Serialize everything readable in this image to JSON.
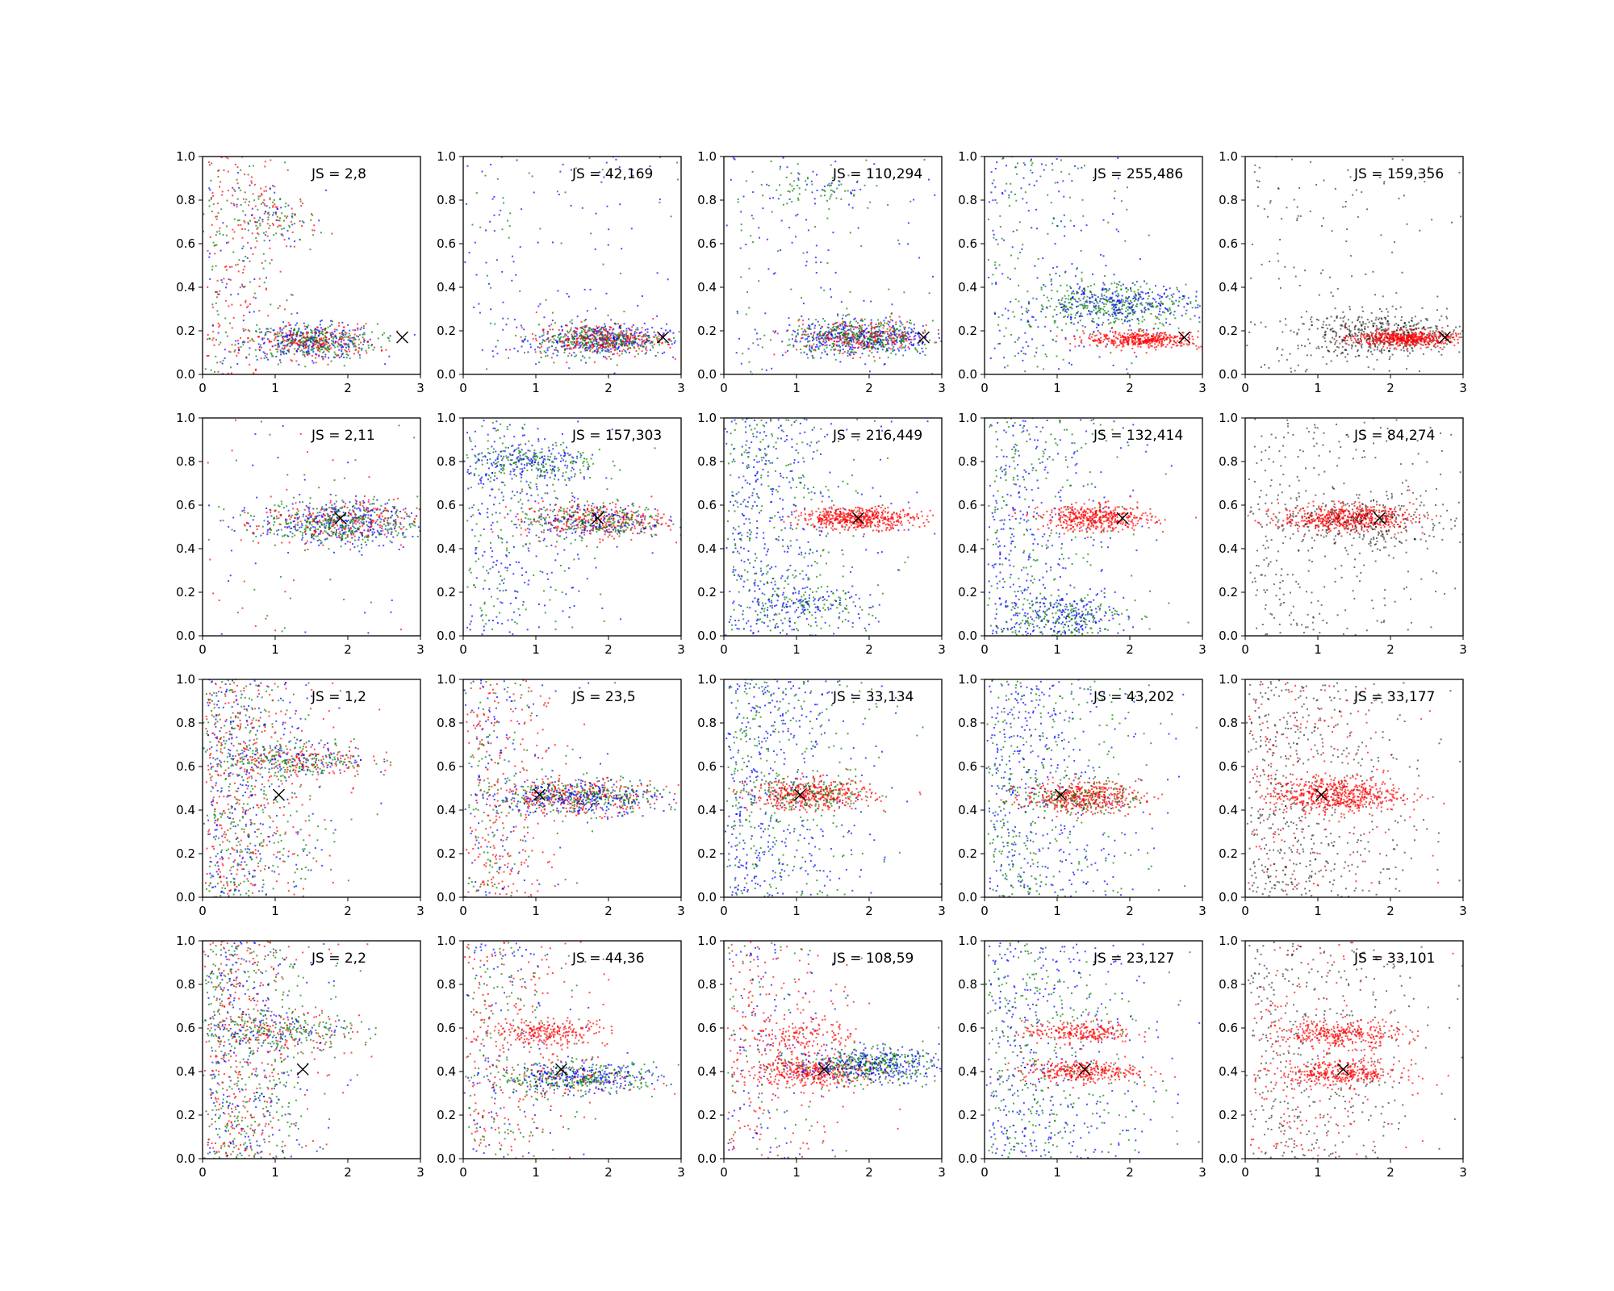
{
  "chart_data": {
    "type": "scatter",
    "layout": {
      "rows": 4,
      "cols": 5
    },
    "shared_axes": {
      "xlim": [
        0,
        3
      ],
      "ylim": [
        0,
        1
      ],
      "xticks": [
        "0",
        "1",
        "2",
        "3"
      ],
      "yticks": [
        "0.0",
        "0.2",
        "0.4",
        "0.6",
        "0.8",
        "1.0"
      ],
      "xlabel": "",
      "ylabel": "",
      "grid": false
    },
    "colors": {
      "blue": "#0000ff",
      "green": "#007f00",
      "red": "#ff0000",
      "black": "#000000"
    },
    "marker": {
      "symbol": "x",
      "color": "#000000"
    },
    "subplots": [
      {
        "row": 0,
        "col": 0,
        "label": "JS = 2,8",
        "marker_xy": [
          2.75,
          0.17
        ],
        "colors": [
          "blue",
          "green",
          "red"
        ],
        "clusters": [
          {
            "cx": 1.5,
            "cy": 0.15,
            "sx": 0.45,
            "sy": 0.04,
            "n": {
              "blue": 260,
              "green": 260,
              "red": 200
            }
          },
          {
            "cx": 1.0,
            "cy": 0.71,
            "sx": 0.3,
            "sy": 0.06,
            "n": {
              "green": 70,
              "red": 50,
              "blue": 30
            }
          }
        ],
        "scatter_fill": {
          "xmax": 0.9,
          "n": {
            "red": 150,
            "green": 90,
            "blue": 40
          }
        }
      },
      {
        "row": 0,
        "col": 1,
        "label": "JS = 42,169",
        "marker_xy": [
          2.75,
          0.17
        ],
        "colors": [
          "blue",
          "green",
          "red"
        ],
        "clusters": [
          {
            "cx": 1.9,
            "cy": 0.16,
            "sx": 0.45,
            "sy": 0.035,
            "n": {
              "blue": 320,
              "green": 280,
              "red": 260
            }
          }
        ],
        "scatter_fill": {
          "xmax": 3.0,
          "n": {
            "blue": 120,
            "green": 60
          }
        }
      },
      {
        "row": 0,
        "col": 2,
        "label": "JS = 110,294",
        "marker_xy": [
          2.75,
          0.17
        ],
        "colors": [
          "blue",
          "green",
          "red"
        ],
        "clusters": [
          {
            "cx": 1.9,
            "cy": 0.17,
            "sx": 0.5,
            "sy": 0.04,
            "n": {
              "blue": 380,
              "green": 330,
              "red": 220
            }
          },
          {
            "cx": 1.3,
            "cy": 0.85,
            "sx": 0.4,
            "sy": 0.05,
            "n": {
              "green": 60,
              "blue": 20
            }
          }
        ],
        "scatter_fill": {
          "xmax": 3.0,
          "n": {
            "blue": 110,
            "green": 70
          }
        }
      },
      {
        "row": 0,
        "col": 3,
        "label": "JS = 255,486",
        "marker_xy": [
          2.75,
          0.17
        ],
        "colors": [
          "blue",
          "green",
          "red"
        ],
        "clusters": [
          {
            "cx": 1.8,
            "cy": 0.32,
            "sx": 0.55,
            "sy": 0.05,
            "n": {
              "green": 340,
              "blue": 240
            }
          },
          {
            "cx": 2.2,
            "cy": 0.16,
            "sx": 0.4,
            "sy": 0.018,
            "n": {
              "red": 420
            }
          }
        ],
        "scatter_fill": {
          "xmax": 1.5,
          "n": {
            "blue": 150,
            "green": 130
          }
        }
      },
      {
        "row": 0,
        "col": 4,
        "label": "JS = 159,356",
        "marker_xy": [
          2.75,
          0.17
        ],
        "colors": [
          "black",
          "red"
        ],
        "clusters": [
          {
            "cx": 1.9,
            "cy": 0.18,
            "sx": 0.6,
            "sy": 0.05,
            "n": {
              "black": 520
            }
          },
          {
            "cx": 2.2,
            "cy": 0.165,
            "sx": 0.35,
            "sy": 0.018,
            "n": {
              "red": 500
            }
          }
        ],
        "scatter_fill": {
          "xmax": 3.0,
          "n": {
            "black": 160
          }
        }
      },
      {
        "row": 1,
        "col": 0,
        "label": "JS = 2,11",
        "marker_xy": [
          1.9,
          0.54
        ],
        "colors": [
          "blue",
          "green",
          "red"
        ],
        "clusters": [
          {
            "cx": 1.9,
            "cy": 0.52,
            "sx": 0.55,
            "sy": 0.05,
            "n": {
              "blue": 330,
              "green": 320,
              "red": 200
            }
          }
        ],
        "scatter_fill": {
          "xmax": 3.0,
          "n": {
            "red": 40,
            "green": 30,
            "blue": 30
          }
        }
      },
      {
        "row": 1,
        "col": 1,
        "label": "JS = 157,303",
        "marker_xy": [
          1.85,
          0.54
        ],
        "colors": [
          "blue",
          "green",
          "red"
        ],
        "clusters": [
          {
            "cx": 1.8,
            "cy": 0.53,
            "sx": 0.5,
            "sy": 0.04,
            "n": {
              "red": 320,
              "green": 220,
              "blue": 140
            }
          },
          {
            "cx": 1.0,
            "cy": 0.79,
            "sx": 0.45,
            "sy": 0.05,
            "n": {
              "green": 170,
              "blue": 150
            }
          }
        ],
        "scatter_fill": {
          "xmax": 1.3,
          "n": {
            "blue": 200,
            "green": 150
          }
        }
      },
      {
        "row": 1,
        "col": 2,
        "label": "JS = 216,449",
        "marker_xy": [
          1.85,
          0.54
        ],
        "colors": [
          "blue",
          "green",
          "red"
        ],
        "clusters": [
          {
            "cx": 1.85,
            "cy": 0.54,
            "sx": 0.4,
            "sy": 0.025,
            "n": {
              "red": 520
            }
          },
          {
            "cx": 1.1,
            "cy": 0.14,
            "sx": 0.45,
            "sy": 0.04,
            "n": {
              "green": 90,
              "blue": 80
            }
          }
        ],
        "scatter_fill": {
          "xmax": 1.5,
          "n": {
            "blue": 360,
            "green": 280
          }
        }
      },
      {
        "row": 1,
        "col": 3,
        "label": "JS = 132,414",
        "marker_xy": [
          1.9,
          0.54
        ],
        "colors": [
          "blue",
          "green",
          "red"
        ],
        "clusters": [
          {
            "cx": 1.55,
            "cy": 0.54,
            "sx": 0.38,
            "sy": 0.03,
            "n": {
              "red": 450
            }
          },
          {
            "cx": 1.05,
            "cy": 0.09,
            "sx": 0.45,
            "sy": 0.05,
            "n": {
              "blue": 180,
              "green": 150
            }
          }
        ],
        "scatter_fill": {
          "xmax": 1.5,
          "n": {
            "blue": 280,
            "green": 220
          }
        }
      },
      {
        "row": 1,
        "col": 4,
        "label": "JS = 84,274",
        "marker_xy": [
          1.85,
          0.54
        ],
        "colors": [
          "black",
          "red"
        ],
        "clusters": [
          {
            "cx": 1.4,
            "cy": 0.54,
            "sx": 0.45,
            "sy": 0.03,
            "n": {
              "red": 560
            }
          },
          {
            "cx": 1.7,
            "cy": 0.52,
            "sx": 0.65,
            "sy": 0.07,
            "n": {
              "black": 260
            }
          }
        ],
        "scatter_fill": {
          "xmax": 2.2,
          "n": {
            "black": 320
          }
        }
      },
      {
        "row": 2,
        "col": 0,
        "label": "JS = 1,2",
        "marker_xy": [
          1.05,
          0.47
        ],
        "colors": [
          "blue",
          "green",
          "red"
        ],
        "clusters": [
          {
            "cx": 1.3,
            "cy": 0.63,
            "sx": 0.5,
            "sy": 0.04,
            "n": {
              "green": 180,
              "red": 130,
              "blue": 80
            }
          }
        ],
        "scatter_fill": {
          "xmax": 1.2,
          "n": {
            "green": 330,
            "red": 320,
            "blue": 260
          }
        }
      },
      {
        "row": 2,
        "col": 1,
        "label": "JS = 23,5",
        "marker_xy": [
          1.05,
          0.47
        ],
        "colors": [
          "blue",
          "green",
          "red"
        ],
        "clusters": [
          {
            "cx": 1.6,
            "cy": 0.46,
            "sx": 0.55,
            "sy": 0.04,
            "n": {
              "green": 320,
              "red": 260,
              "blue": 240
            }
          }
        ],
        "scatter_fill": {
          "xmax": 1.1,
          "n": {
            "red": 230,
            "green": 120,
            "blue": 120
          }
        }
      },
      {
        "row": 2,
        "col": 2,
        "label": "JS = 33,134",
        "marker_xy": [
          1.05,
          0.47
        ],
        "colors": [
          "blue",
          "green",
          "red"
        ],
        "clusters": [
          {
            "cx": 1.2,
            "cy": 0.47,
            "sx": 0.42,
            "sy": 0.035,
            "n": {
              "red": 420,
              "green": 120
            }
          }
        ],
        "scatter_fill": {
          "xmax": 1.6,
          "n": {
            "blue": 380,
            "green": 300
          }
        }
      },
      {
        "row": 2,
        "col": 3,
        "label": "JS = 43,202",
        "marker_xy": [
          1.05,
          0.47
        ],
        "colors": [
          "blue",
          "green",
          "red"
        ],
        "clusters": [
          {
            "cx": 1.35,
            "cy": 0.46,
            "sx": 0.4,
            "sy": 0.035,
            "n": {
              "red": 440,
              "green": 110
            }
          }
        ],
        "scatter_fill": {
          "xmax": 1.6,
          "n": {
            "blue": 360,
            "green": 320
          }
        }
      },
      {
        "row": 2,
        "col": 4,
        "label": "JS = 33,177",
        "marker_xy": [
          1.05,
          0.47
        ],
        "colors": [
          "black",
          "red"
        ],
        "clusters": [
          {
            "cx": 1.25,
            "cy": 0.47,
            "sx": 0.45,
            "sy": 0.04,
            "n": {
              "red": 560
            }
          }
        ],
        "scatter_fill": {
          "xmax": 1.8,
          "n": {
            "black": 560,
            "red": 160
          }
        }
      },
      {
        "row": 3,
        "col": 0,
        "label": "JS = 2,2",
        "marker_xy": [
          1.38,
          0.41
        ],
        "colors": [
          "blue",
          "green",
          "red"
        ],
        "clusters": [
          {
            "cx": 1.1,
            "cy": 0.58,
            "sx": 0.5,
            "sy": 0.04,
            "n": {
              "green": 170,
              "red": 90,
              "blue": 60
            }
          }
        ],
        "scatter_fill": {
          "xmax": 1.2,
          "n": {
            "green": 380,
            "red": 300,
            "blue": 220
          }
        }
      },
      {
        "row": 3,
        "col": 1,
        "label": "JS = 44,36",
        "marker_xy": [
          1.35,
          0.41
        ],
        "colors": [
          "blue",
          "green",
          "red"
        ],
        "clusters": [
          {
            "cx": 1.2,
            "cy": 0.58,
            "sx": 0.4,
            "sy": 0.03,
            "n": {
              "red": 240
            }
          },
          {
            "cx": 1.6,
            "cy": 0.37,
            "sx": 0.55,
            "sy": 0.035,
            "n": {
              "green": 280,
              "blue": 220,
              "red": 60
            }
          }
        ],
        "scatter_fill": {
          "xmax": 1.3,
          "n": {
            "red": 230,
            "green": 140,
            "blue": 90
          }
        }
      },
      {
        "row": 3,
        "col": 2,
        "label": "JS = 108,59",
        "marker_xy": [
          1.38,
          0.41
        ],
        "colors": [
          "blue",
          "green",
          "red"
        ],
        "clusters": [
          {
            "cx": 1.2,
            "cy": 0.4,
            "sx": 0.4,
            "sy": 0.035,
            "n": {
              "red": 380
            }
          },
          {
            "cx": 2.0,
            "cy": 0.43,
            "sx": 0.5,
            "sy": 0.04,
            "n": {
              "green": 320,
              "blue": 260
            }
          },
          {
            "cx": 1.1,
            "cy": 0.57,
            "sx": 0.35,
            "sy": 0.04,
            "n": {
              "red": 150
            }
          }
        ],
        "scatter_fill": {
          "xmax": 1.3,
          "n": {
            "red": 200,
            "blue": 100,
            "green": 60
          }
        }
      },
      {
        "row": 3,
        "col": 3,
        "label": "JS = 23,127",
        "marker_xy": [
          1.38,
          0.41
        ],
        "colors": [
          "blue",
          "green",
          "red"
        ],
        "clusters": [
          {
            "cx": 1.3,
            "cy": 0.4,
            "sx": 0.4,
            "sy": 0.025,
            "n": {
              "red": 320
            }
          },
          {
            "cx": 1.3,
            "cy": 0.58,
            "sx": 0.38,
            "sy": 0.025,
            "n": {
              "red": 240
            }
          }
        ],
        "scatter_fill": {
          "xmax": 1.8,
          "n": {
            "blue": 340,
            "green": 320
          }
        }
      },
      {
        "row": 3,
        "col": 4,
        "label": "JS = 33,101",
        "marker_xy": [
          1.35,
          0.41
        ],
        "colors": [
          "black",
          "red"
        ],
        "clusters": [
          {
            "cx": 1.3,
            "cy": 0.39,
            "sx": 0.42,
            "sy": 0.03,
            "n": {
              "red": 340
            }
          },
          {
            "cx": 1.3,
            "cy": 0.57,
            "sx": 0.42,
            "sy": 0.03,
            "n": {
              "red": 330
            }
          }
        ],
        "scatter_fill": {
          "xmax": 2.0,
          "n": {
            "black": 420,
            "red": 160
          }
        }
      }
    ]
  }
}
